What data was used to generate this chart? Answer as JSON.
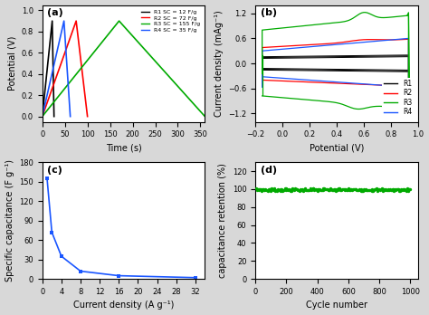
{
  "panel_a": {
    "label": "(a)",
    "xlabel": "Time (s)",
    "ylabel": "Potential (V)",
    "xlim": [
      0,
      360
    ],
    "ylim": [
      -0.05,
      1.05
    ],
    "xticks": [
      0,
      50,
      100,
      150,
      200,
      250,
      300,
      350
    ],
    "yticks": [
      0.0,
      0.2,
      0.4,
      0.6,
      0.8,
      1.0
    ],
    "r1": {
      "color": "#000000",
      "label": "R1 SC = 12 F/g",
      "t_up": 22,
      "t_down": 26
    },
    "r2": {
      "color": "#ff0000",
      "label": "R2 SC = 72 F/g",
      "t_up": 75,
      "t_down": 100
    },
    "r3": {
      "color": "#00aa00",
      "label": "R3 SC = 155 F/g",
      "t_up": 170,
      "t_down": 360
    },
    "r4": {
      "color": "#1a56ff",
      "label": "R4 SC = 35 F/g",
      "t_up": 48,
      "t_down": 62
    }
  },
  "panel_b": {
    "label": "(b)",
    "xlabel": "Potential (V)",
    "ylabel": "Current density (mAg⁻¹)",
    "xlim": [
      -0.2,
      1.0
    ],
    "ylim": [
      -1.4,
      1.4
    ],
    "xticks": [
      -0.2,
      0.0,
      0.2,
      0.4,
      0.6,
      0.8,
      1.0
    ],
    "yticks": [
      -1.2,
      -0.6,
      0.0,
      0.6,
      1.2
    ]
  },
  "panel_c": {
    "label": "(c)",
    "xlabel": "Current density (A g⁻¹)",
    "ylabel": "Specific capacitance (F g⁻¹)",
    "xlim": [
      0,
      34
    ],
    "ylim": [
      0,
      180
    ],
    "xticks": [
      0,
      4,
      8,
      12,
      16,
      20,
      24,
      28,
      32
    ],
    "yticks": [
      0,
      30,
      60,
      90,
      120,
      150,
      180
    ],
    "x": [
      1,
      2,
      4,
      8,
      16,
      32
    ],
    "y": [
      155,
      72,
      35,
      12,
      5,
      2
    ],
    "color": "#1a56ff"
  },
  "panel_d": {
    "label": "(d)",
    "xlabel": "Cycle number",
    "ylabel": "capacitance retention (%)",
    "xlim": [
      0,
      1050
    ],
    "ylim": [
      0,
      130
    ],
    "xticks": [
      0,
      200,
      400,
      600,
      800,
      1000
    ],
    "yticks": [
      0,
      20,
      40,
      60,
      80,
      100,
      120
    ],
    "color": "#00aa00",
    "mean_retention": 99.5,
    "noise": 0.8
  },
  "background_color": "#d8d8d8"
}
